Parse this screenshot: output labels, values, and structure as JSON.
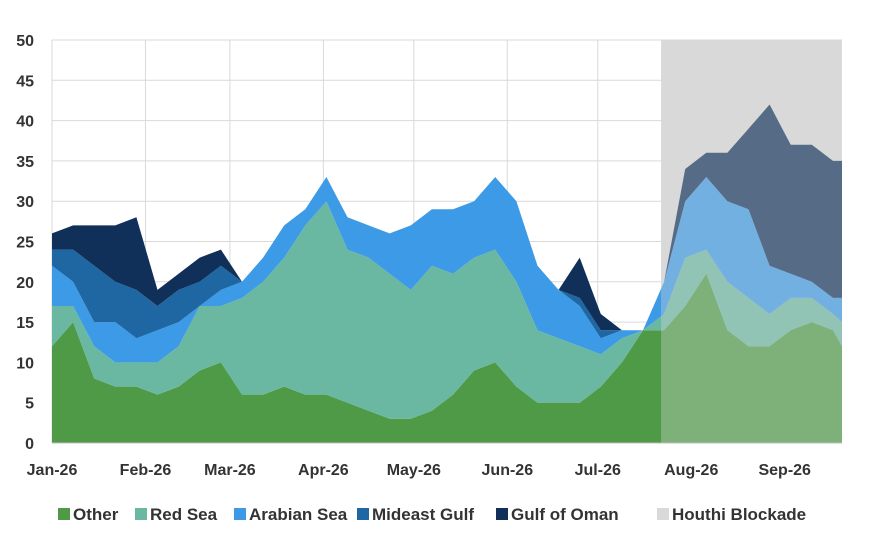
{
  "chart_data": {
    "type": "area",
    "title": "",
    "xlabel": "",
    "ylabel": "",
    "ylim": [
      0,
      50
    ],
    "y_ticks": [
      "0",
      "5",
      "10",
      "15",
      "20",
      "25",
      "30",
      "35",
      "40",
      "45",
      "50"
    ],
    "x_tick_labels": [
      "Jan-26",
      "Feb-26",
      "Mar-26",
      "Apr-26",
      "May-26",
      "Jun-26",
      "Jul-26",
      "Aug-26",
      "Sep-26"
    ],
    "x_ticks": [
      "2026-01-01",
      "2026-02-01",
      "2026-03-01",
      "2026-04-01",
      "2026-05-01",
      "2026-06-01",
      "2026-07-01",
      "2026-08-01",
      "2026-09-01"
    ],
    "x_range": [
      "2026-01-01",
      "2026-09-20"
    ],
    "grid": true,
    "legend_position": "bottom",
    "shaded_region": {
      "name": "Houthi Blockade",
      "start": "2026-07-22",
      "end": "2026-09-20",
      "color": "#d9d9d9"
    },
    "x": [
      "2026-01-01",
      "2026-01-08",
      "2026-01-15",
      "2026-01-22",
      "2026-01-29",
      "2026-02-05",
      "2026-02-12",
      "2026-02-19",
      "2026-02-26",
      "2026-03-05",
      "2026-03-12",
      "2026-03-19",
      "2026-03-26",
      "2026-04-02",
      "2026-04-09",
      "2026-04-16",
      "2026-04-23",
      "2026-04-30",
      "2026-05-07",
      "2026-05-14",
      "2026-05-21",
      "2026-05-28",
      "2026-06-04",
      "2026-06-11",
      "2026-06-18",
      "2026-06-25",
      "2026-07-02",
      "2026-07-09",
      "2026-07-16",
      "2026-07-23",
      "2026-07-30",
      "2026-08-06",
      "2026-08-13",
      "2026-08-20",
      "2026-08-27",
      "2026-09-03",
      "2026-09-10",
      "2026-09-17",
      "2026-09-20"
    ],
    "series": [
      {
        "name": "Other",
        "color": "#4e9a47",
        "values": [
          12,
          15,
          8,
          7,
          7,
          6,
          7,
          9,
          10,
          6,
          6,
          7,
          6,
          6,
          5,
          4,
          3,
          3,
          4,
          6,
          9,
          10,
          7,
          5,
          5,
          5,
          7,
          10,
          14,
          14,
          17,
          21,
          14,
          12,
          12,
          14,
          15,
          14,
          12
        ]
      },
      {
        "name": "Red Sea",
        "color": "#6ab8a1",
        "values": [
          5,
          2,
          4,
          3,
          3,
          4,
          5,
          8,
          7,
          12,
          14,
          16,
          21,
          24,
          19,
          19,
          18,
          16,
          18,
          15,
          14,
          14,
          13,
          9,
          8,
          7,
          4,
          3,
          0,
          2,
          6,
          3,
          6,
          6,
          4,
          4,
          3,
          2,
          3
        ]
      },
      {
        "name": "Arabian Sea",
        "color": "#3c9ae6",
        "values": [
          5,
          3,
          3,
          5,
          3,
          4,
          3,
          0,
          2,
          2,
          3,
          4,
          2,
          3,
          4,
          4,
          5,
          8,
          7,
          8,
          7,
          9,
          10,
          8,
          6,
          5,
          2,
          1,
          0,
          4,
          7,
          9,
          10,
          11,
          6,
          3,
          2,
          2,
          3
        ]
      },
      {
        "name": "Mideast Gulf",
        "color": "#1f67a3",
        "values": [
          2,
          4,
          7,
          5,
          6,
          3,
          4,
          3,
          3,
          0,
          0,
          0,
          0,
          0,
          0,
          0,
          0,
          0,
          0,
          0,
          0,
          0,
          0,
          0,
          0,
          1,
          1,
          0,
          0,
          0,
          0,
          0,
          0,
          0,
          0,
          0,
          0,
          0,
          0
        ]
      },
      {
        "name": "Gulf of Oman",
        "color": "#10305a",
        "values": [
          2,
          3,
          5,
          7,
          9,
          2,
          2,
          3,
          2,
          0,
          0,
          0,
          0,
          0,
          0,
          0,
          0,
          0,
          0,
          0,
          0,
          0,
          0,
          0,
          0,
          5,
          2,
          0,
          0,
          0,
          4,
          3,
          6,
          10,
          20,
          16,
          17,
          17,
          17
        ]
      }
    ],
    "legend": [
      {
        "label": "Other",
        "color": "#4e9a47"
      },
      {
        "label": "Red Sea",
        "color": "#6ab8a1"
      },
      {
        "label": "Arabian Sea",
        "color": "#3c9ae6"
      },
      {
        "label": "Mideast Gulf",
        "color": "#1f67a3"
      },
      {
        "label": "Gulf of Oman",
        "color": "#10305a"
      },
      {
        "label": "Houthi Blockade",
        "color": "#d9d9d9"
      }
    ]
  }
}
